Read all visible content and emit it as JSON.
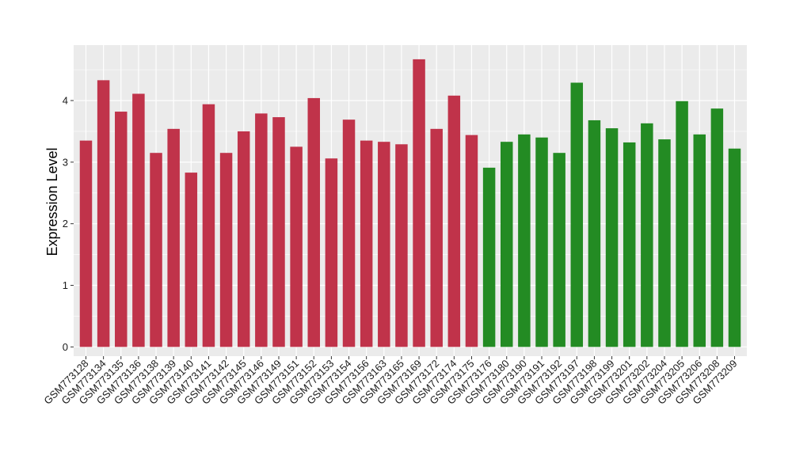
{
  "chart_data": {
    "type": "bar",
    "title": "",
    "xlabel": "",
    "ylabel": "Expression Level",
    "ylim": [
      -0.15,
      4.9
    ],
    "yticks": [
      0,
      1,
      2,
      3,
      4
    ],
    "grid": true,
    "legend": "none",
    "colors": {
      "group1": "#c0334a",
      "group2": "#238b23",
      "panel": "#ebebeb",
      "grid": "#ffffff"
    },
    "categories": [
      "GSM773128",
      "GSM773134",
      "GSM773135",
      "GSM773136",
      "GSM773138",
      "GSM773139",
      "GSM773140",
      "GSM773141",
      "GSM773142",
      "GSM773145",
      "GSM773146",
      "GSM773149",
      "GSM773151",
      "GSM773152",
      "GSM773153",
      "GSM773154",
      "GSM773156",
      "GSM773163",
      "GSM773165",
      "GSM773169",
      "GSM773172",
      "GSM773174",
      "GSM773175",
      "GSM773176",
      "GSM773180",
      "GSM773190",
      "GSM773191",
      "GSM773192",
      "GSM773197",
      "GSM773198",
      "GSM773199",
      "GSM773201",
      "GSM773202",
      "GSM773204",
      "GSM773205",
      "GSM773206",
      "GSM773208",
      "GSM773209"
    ],
    "values": [
      3.35,
      4.33,
      3.82,
      4.11,
      3.15,
      3.54,
      2.83,
      3.94,
      3.15,
      3.5,
      3.79,
      3.73,
      3.25,
      4.04,
      3.06,
      3.69,
      3.35,
      3.33,
      3.29,
      4.67,
      3.54,
      4.08,
      3.44,
      2.91,
      3.33,
      3.45,
      3.4,
      3.15,
      4.29,
      3.68,
      3.55,
      3.32,
      3.63,
      3.37,
      3.99,
      3.45,
      3.87,
      3.22
    ],
    "groups": [
      1,
      1,
      1,
      1,
      1,
      1,
      1,
      1,
      1,
      1,
      1,
      1,
      1,
      1,
      1,
      1,
      1,
      1,
      1,
      1,
      1,
      1,
      1,
      2,
      2,
      2,
      2,
      2,
      2,
      2,
      2,
      2,
      2,
      2,
      2,
      2,
      2,
      2
    ]
  }
}
